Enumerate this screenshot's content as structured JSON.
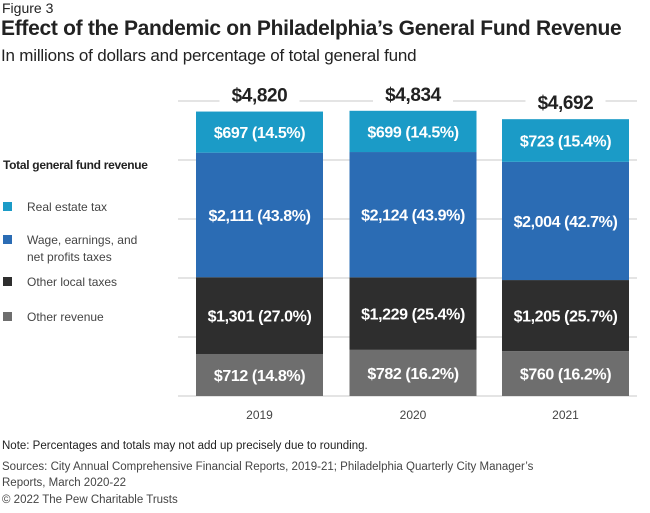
{
  "figure_label": "Figure 3",
  "chart_data": {
    "type": "bar",
    "stacked": true,
    "title": "Effect of the Pandemic on Philadelphia’s General Fund Revenue",
    "subtitle": "In millions of dollars and percentage of total general fund",
    "categories": [
      "2019",
      "2020",
      "2021"
    ],
    "totals": [
      4820,
      4834,
      4692
    ],
    "total_labels": [
      "$4,820",
      "$4,834",
      "$4,692"
    ],
    "ylim": [
      0,
      5000
    ],
    "grid": true,
    "legend_title": "Total general fund revenue",
    "legend_position": "left",
    "series": [
      {
        "name": "Other revenue",
        "color": "#6e6e6e",
        "values": [
          712,
          782,
          760
        ],
        "percents": [
          14.8,
          16.2,
          16.2
        ],
        "labels": [
          "$712 (14.8%)",
          "$782 (16.2%)",
          "$760 (16.2%)"
        ]
      },
      {
        "name": "Other local taxes",
        "color": "#2e2e2e",
        "values": [
          1301,
          1229,
          1205
        ],
        "percents": [
          27.0,
          25.4,
          25.7
        ],
        "labels": [
          "$1,301 (27.0%)",
          "$1,229 (25.4%)",
          "$1,205 (25.7%)"
        ]
      },
      {
        "name": "Wage, earnings, and\nnet profits taxes",
        "color": "#2b6cb4",
        "values": [
          2111,
          2124,
          2004
        ],
        "percents": [
          43.8,
          43.9,
          42.7
        ],
        "labels": [
          "$2,111 (43.8%)",
          "$2,124 (43.9%)",
          "$2,004 (42.7%)"
        ]
      },
      {
        "name": "Real estate tax",
        "color": "#1b9bc7",
        "values": [
          697,
          699,
          723
        ],
        "percents": [
          14.5,
          14.5,
          15.4
        ],
        "labels": [
          "$697 (14.5%)",
          "$699 (14.5%)",
          "$723 (15.4%)"
        ]
      }
    ]
  },
  "footer": {
    "note": "Note: Percentages and totals may not add up precisely due to rounding.",
    "sources": "Sources: City Annual Comprehensive Financial Reports, 2019-21; Philadelphia Quarterly City Manager’s Reports, March 2020-22",
    "copyright": "© 2022 The Pew Charitable Trusts"
  }
}
